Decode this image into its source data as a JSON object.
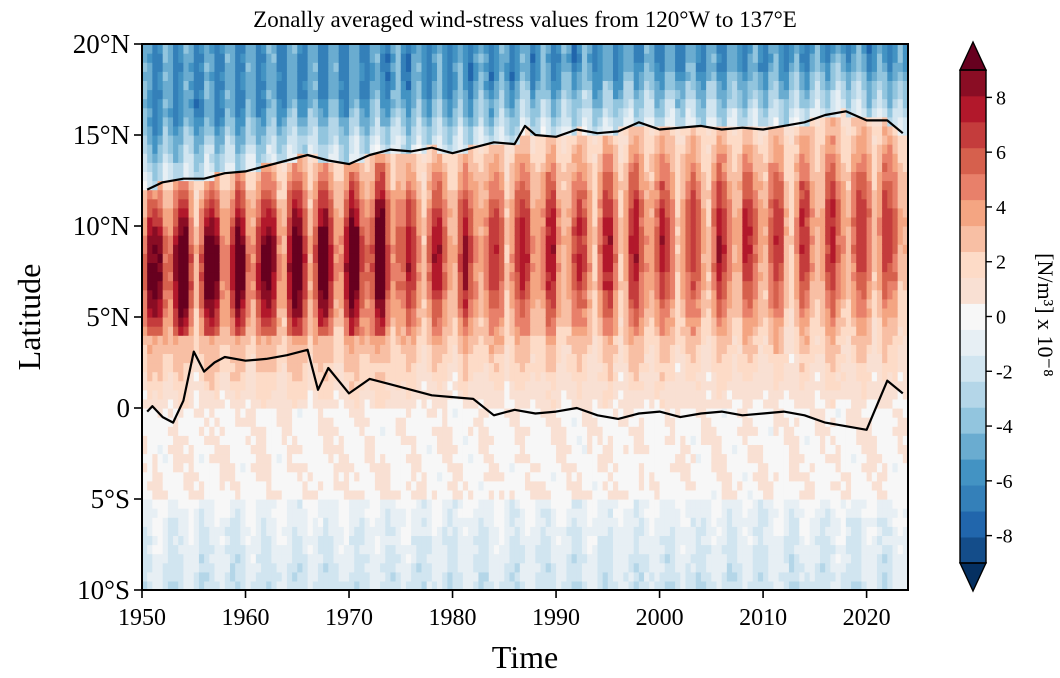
{
  "chart_data": {
    "type": "heatmap",
    "title": "Zonally averaged wind-stress values from 120°W to 137°E",
    "xlabel": "Time",
    "ylabel": "Latitude",
    "x_range": [
      1950,
      2024
    ],
    "y_range": [
      -10,
      20
    ],
    "x_ticks": [
      {
        "value": 1950,
        "label": "1950"
      },
      {
        "value": 1960,
        "label": "1960"
      },
      {
        "value": 1970,
        "label": "1970"
      },
      {
        "value": 1980,
        "label": "1980"
      },
      {
        "value": 1990,
        "label": "1990"
      },
      {
        "value": 2000,
        "label": "2000"
      },
      {
        "value": 2010,
        "label": "2010"
      },
      {
        "value": 2020,
        "label": "2020"
      }
    ],
    "y_ticks": [
      {
        "value": 20,
        "label": "20°N"
      },
      {
        "value": 15,
        "label": "15°N"
      },
      {
        "value": 10,
        "label": "10°N"
      },
      {
        "value": 5,
        "label": "5°N"
      },
      {
        "value": 0,
        "label": "0"
      },
      {
        "value": -5,
        "label": "5°S"
      },
      {
        "value": -10,
        "label": "10°S"
      }
    ],
    "colorbar": {
      "label": "[N/m³] x 10⁻⁸",
      "range": [
        -9,
        9
      ],
      "extend": "both",
      "ticks": [
        {
          "value": 8,
          "label": "8"
        },
        {
          "value": 6,
          "label": "6"
        },
        {
          "value": 4,
          "label": "4"
        },
        {
          "value": 2,
          "label": "2"
        },
        {
          "value": 0,
          "label": "0"
        },
        {
          "value": -2,
          "label": "-2"
        },
        {
          "value": -4,
          "label": "-4"
        },
        {
          "value": -6,
          "label": "-6"
        },
        {
          "value": -8,
          "label": "-8"
        }
      ],
      "colors": [
        "#053061",
        "#144d8a",
        "#2166ac",
        "#3480b9",
        "#4393c3",
        "#6aacd0",
        "#92c5de",
        "#b4d6e8",
        "#d1e5f0",
        "#e7eff4",
        "#f7f7f7",
        "#f9e0d3",
        "#fddbc7",
        "#f8bfa4",
        "#f4a582",
        "#e8806a",
        "#d6604d",
        "#c43c3c",
        "#b2182b",
        "#8a0d24",
        "#67001f"
      ]
    },
    "zero_contour_north": [
      [
        1950.5,
        12.0
      ],
      [
        1952,
        12.4
      ],
      [
        1954,
        12.6
      ],
      [
        1956,
        12.6
      ],
      [
        1958,
        12.9
      ],
      [
        1960,
        13.0
      ],
      [
        1962,
        13.3
      ],
      [
        1964,
        13.6
      ],
      [
        1966,
        13.9
      ],
      [
        1968,
        13.6
      ],
      [
        1970,
        13.4
      ],
      [
        1972,
        13.9
      ],
      [
        1974,
        14.2
      ],
      [
        1976,
        14.1
      ],
      [
        1978,
        14.3
      ],
      [
        1980,
        14.0
      ],
      [
        1982,
        14.3
      ],
      [
        1984,
        14.6
      ],
      [
        1986,
        14.5
      ],
      [
        1987,
        15.5
      ],
      [
        1988,
        15.0
      ],
      [
        1990,
        14.9
      ],
      [
        1992,
        15.3
      ],
      [
        1994,
        15.1
      ],
      [
        1996,
        15.2
      ],
      [
        1998,
        15.7
      ],
      [
        2000,
        15.3
      ],
      [
        2002,
        15.4
      ],
      [
        2004,
        15.5
      ],
      [
        2006,
        15.3
      ],
      [
        2008,
        15.4
      ],
      [
        2010,
        15.3
      ],
      [
        2012,
        15.5
      ],
      [
        2014,
        15.7
      ],
      [
        2016,
        16.1
      ],
      [
        2018,
        16.3
      ],
      [
        2020,
        15.8
      ],
      [
        2022,
        15.8
      ],
      [
        2023.5,
        15.1
      ]
    ],
    "zero_contour_south": [
      [
        1950.5,
        -0.2
      ],
      [
        1951,
        0.1
      ],
      [
        1952,
        -0.5
      ],
      [
        1953,
        -0.8
      ],
      [
        1954,
        0.4
      ],
      [
        1955,
        3.1
      ],
      [
        1956,
        2.0
      ],
      [
        1957,
        2.5
      ],
      [
        1958,
        2.8
      ],
      [
        1960,
        2.6
      ],
      [
        1962,
        2.7
      ],
      [
        1964,
        2.9
      ],
      [
        1966,
        3.2
      ],
      [
        1967,
        1.0
      ],
      [
        1968,
        2.2
      ],
      [
        1970,
        0.8
      ],
      [
        1972,
        1.6
      ],
      [
        1974,
        1.3
      ],
      [
        1976,
        1.0
      ],
      [
        1978,
        0.7
      ],
      [
        1980,
        0.6
      ],
      [
        1982,
        0.5
      ],
      [
        1984,
        -0.4
      ],
      [
        1986,
        -0.1
      ],
      [
        1988,
        -0.3
      ],
      [
        1990,
        -0.2
      ],
      [
        1992,
        0.0
      ],
      [
        1994,
        -0.4
      ],
      [
        1996,
        -0.6
      ],
      [
        1998,
        -0.3
      ],
      [
        2000,
        -0.2
      ],
      [
        2002,
        -0.5
      ],
      [
        2004,
        -0.3
      ],
      [
        2006,
        -0.2
      ],
      [
        2008,
        -0.4
      ],
      [
        2010,
        -0.3
      ],
      [
        2012,
        -0.2
      ],
      [
        2014,
        -0.4
      ],
      [
        2016,
        -0.8
      ],
      [
        2018,
        -1.0
      ],
      [
        2020,
        -1.2
      ],
      [
        2022,
        1.5
      ],
      [
        2023.5,
        0.8
      ]
    ]
  }
}
